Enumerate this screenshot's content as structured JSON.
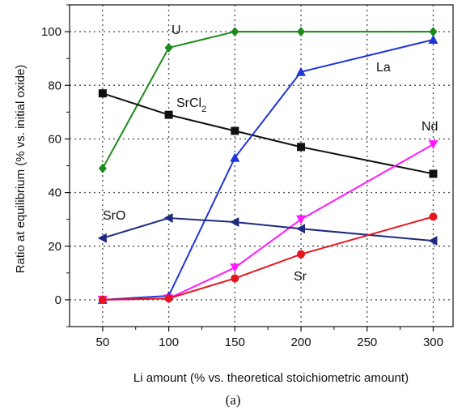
{
  "chart_data": {
    "type": "line",
    "xlabel": "Li amount (% vs. theoretical stoichiometric amount)",
    "ylabel": "Ratio at equilibrium (% vs. initial oxide)",
    "xlim": [
      25,
      315
    ],
    "ylim": [
      -10,
      110
    ],
    "x_ticks": [
      50,
      100,
      150,
      200,
      250,
      300
    ],
    "y_ticks": [
      0,
      20,
      40,
      60,
      80,
      100
    ],
    "grid": true,
    "grid_style": "dotted",
    "legend": "none",
    "caption": "(a)",
    "series": [
      {
        "name": "U",
        "color": "#1a8a1a",
        "marker": "diamond",
        "x": [
          50,
          100,
          150,
          200,
          300
        ],
        "y": [
          49,
          94,
          100,
          100,
          100
        ]
      },
      {
        "name": "SrCl",
        "subscript": "2",
        "color": "#111111",
        "marker": "square",
        "x": [
          50,
          100,
          150,
          200,
          300
        ],
        "y": [
          77,
          69,
          63,
          57,
          47
        ]
      },
      {
        "name": "La",
        "color": "#1f35d6",
        "marker": "triangle-up",
        "x": [
          50,
          100,
          150,
          200,
          300
        ],
        "y": [
          0,
          1.5,
          53,
          85,
          97
        ]
      },
      {
        "name": "Nd",
        "color": "#ff1aff",
        "marker": "triangle-down",
        "x": [
          50,
          100,
          150,
          200,
          300
        ],
        "y": [
          0,
          0.5,
          12,
          30,
          58
        ]
      },
      {
        "name": "SrO",
        "color": "#1e2a80",
        "marker": "triangle-left",
        "x": [
          50,
          100,
          150,
          200,
          300
        ],
        "y": [
          23,
          30.5,
          29,
          26.5,
          22
        ]
      },
      {
        "name": "Sr",
        "color": "#e8141e",
        "marker": "circle",
        "x": [
          50,
          100,
          150,
          200,
          300
        ],
        "y": [
          0,
          0.5,
          8,
          17,
          31
        ]
      }
    ]
  }
}
